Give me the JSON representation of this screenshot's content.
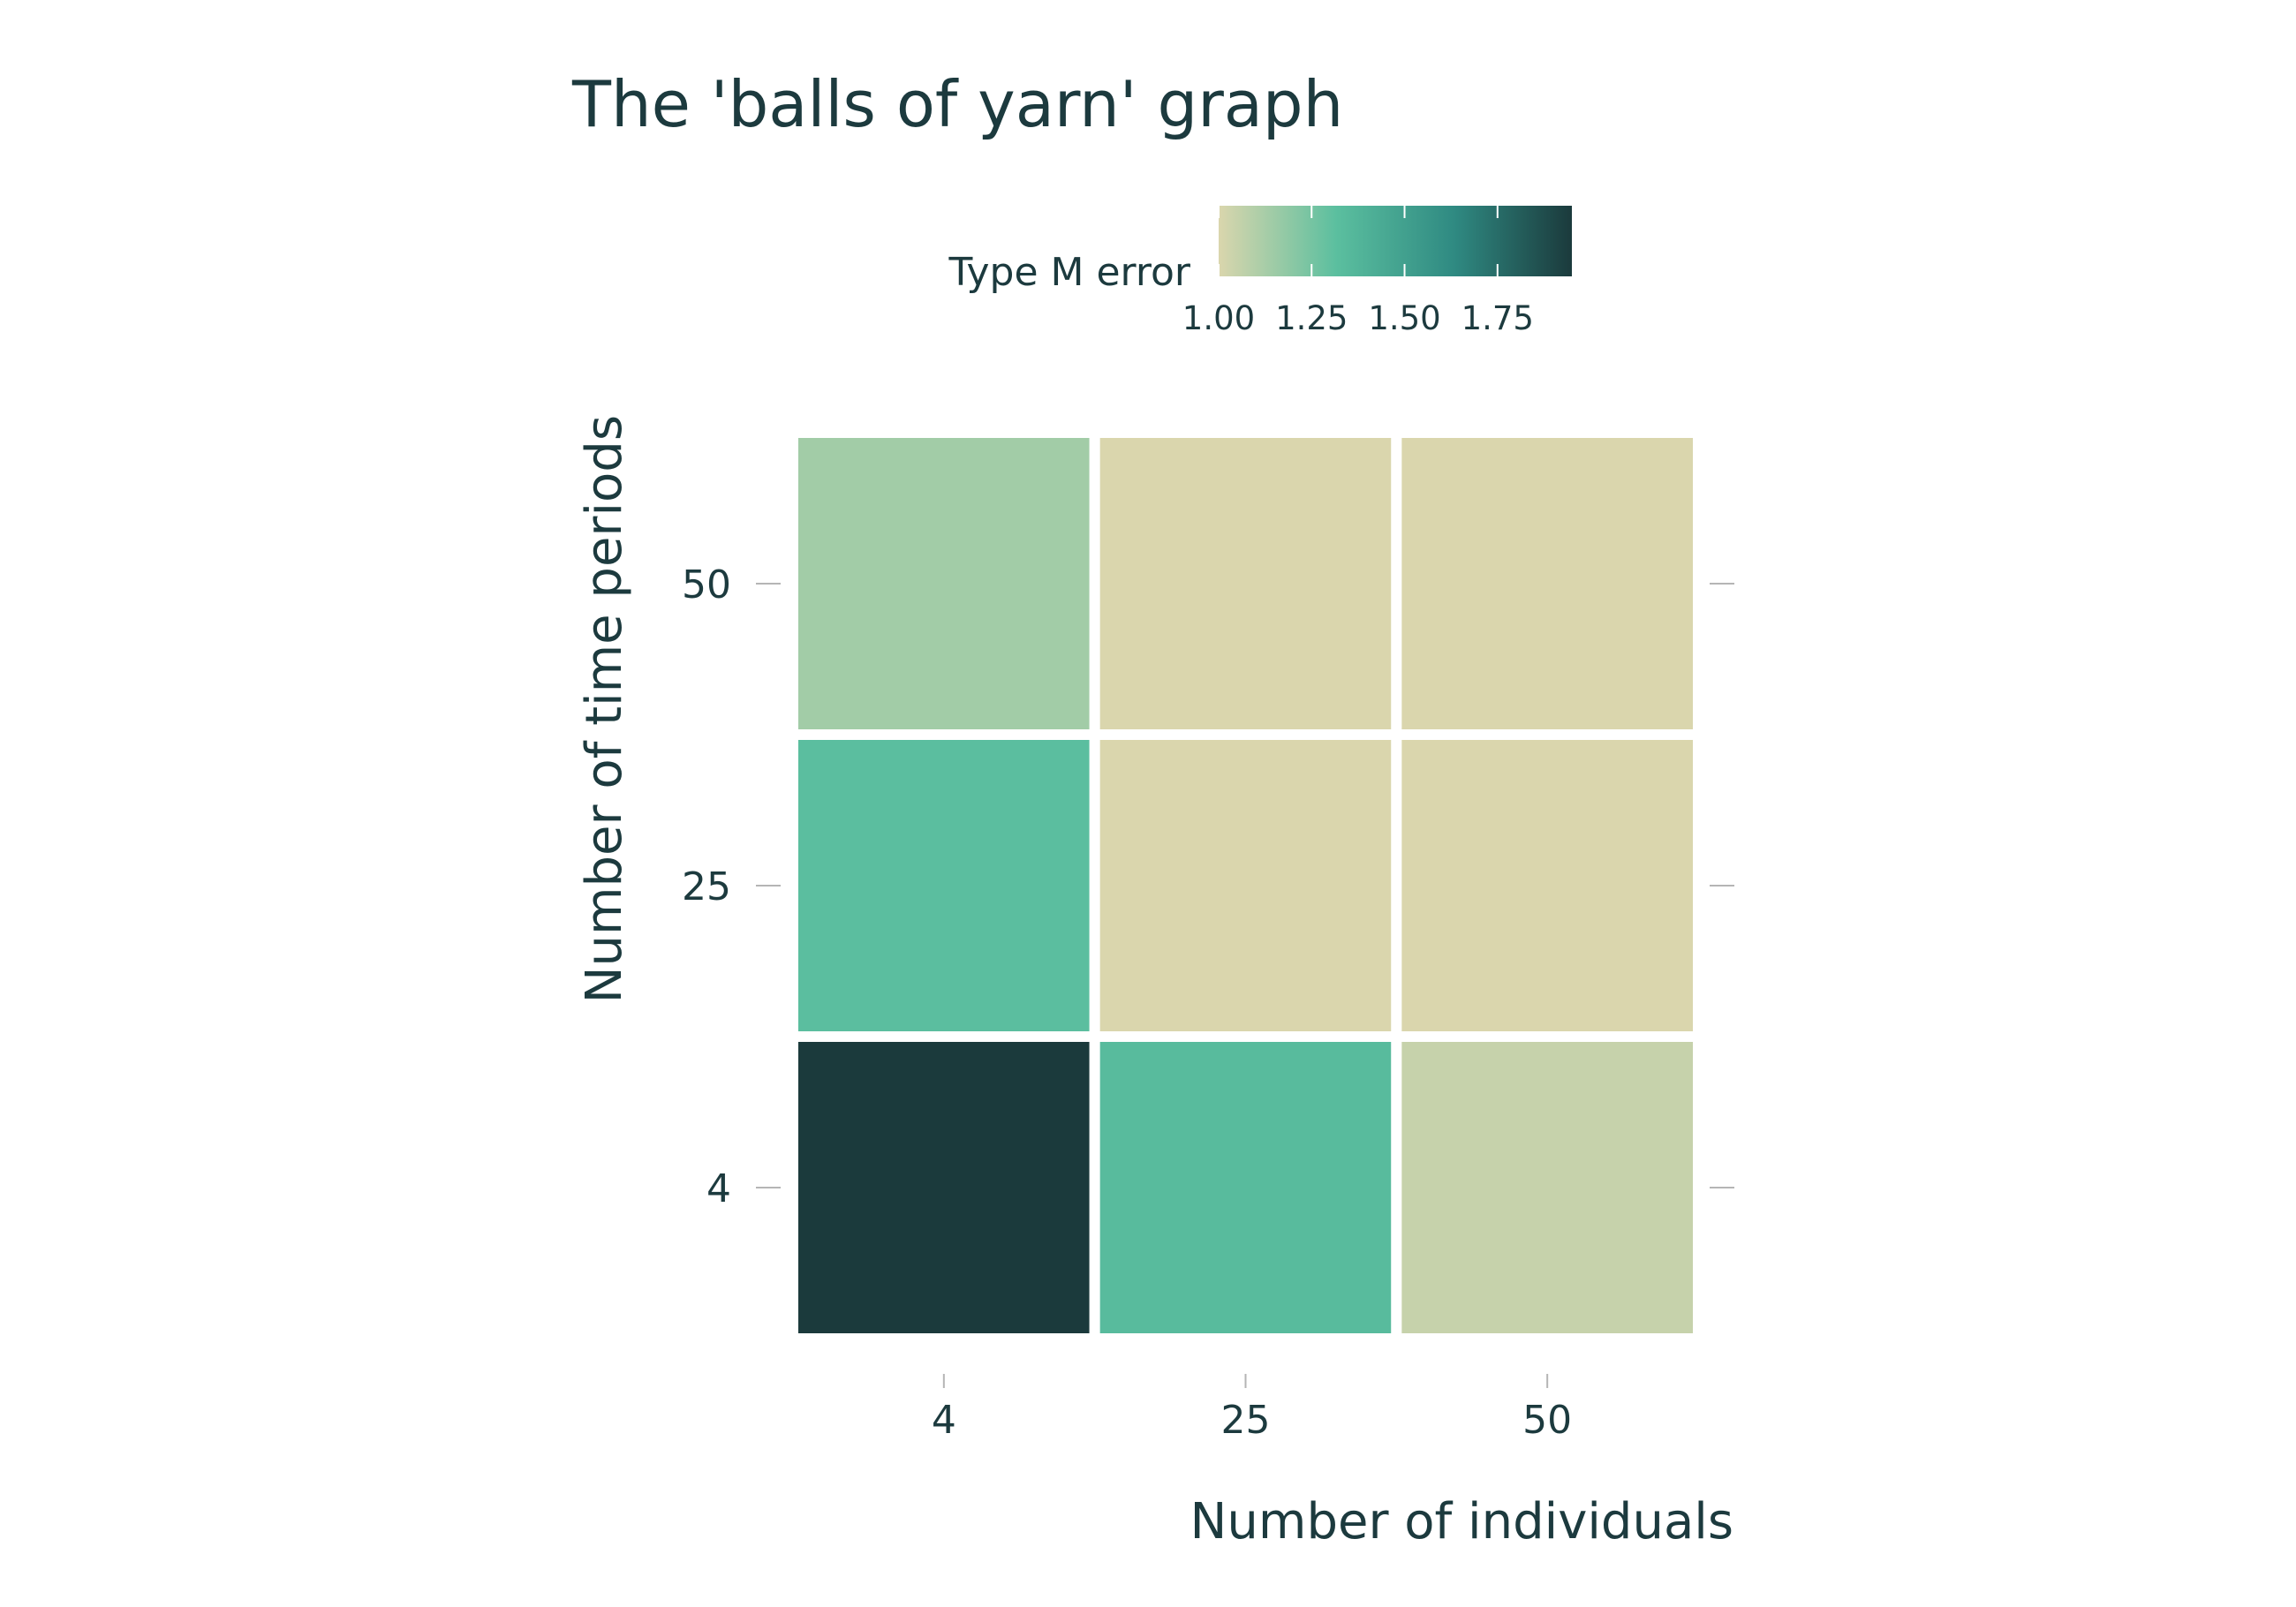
{
  "chart_data": {
    "type": "heatmap",
    "title": "The 'balls of yarn' graph",
    "xlabel": "Number of individuals",
    "ylabel": "Number of time periods",
    "x_categories": [
      "4",
      "25",
      "50"
    ],
    "y_categories": [
      "4",
      "25",
      "50"
    ],
    "cells": [
      {
        "x": "4",
        "y": "50",
        "value": 1.14
      },
      {
        "x": "25",
        "y": "50",
        "value": 1.0
      },
      {
        "x": "50",
        "y": "50",
        "value": 1.0
      },
      {
        "x": "4",
        "y": "25",
        "value": 1.32
      },
      {
        "x": "25",
        "y": "25",
        "value": 1.0
      },
      {
        "x": "50",
        "y": "25",
        "value": 1.0
      },
      {
        "x": "4",
        "y": "4",
        "value": 1.95
      },
      {
        "x": "25",
        "y": "4",
        "value": 1.34
      },
      {
        "x": "50",
        "y": "4",
        "value": 1.05
      }
    ],
    "legend": {
      "title": "Type M error",
      "position": "top",
      "range": [
        1.0,
        1.95
      ],
      "ticks": [
        1.0,
        1.25,
        1.5,
        1.75
      ],
      "tick_labels": [
        "1.00",
        "1.25",
        "1.50",
        "1.75"
      ],
      "colors": [
        "#dad6ad",
        "#5bbf9f",
        "#2f8a82",
        "#1b3a3c"
      ]
    },
    "grid": false
  }
}
